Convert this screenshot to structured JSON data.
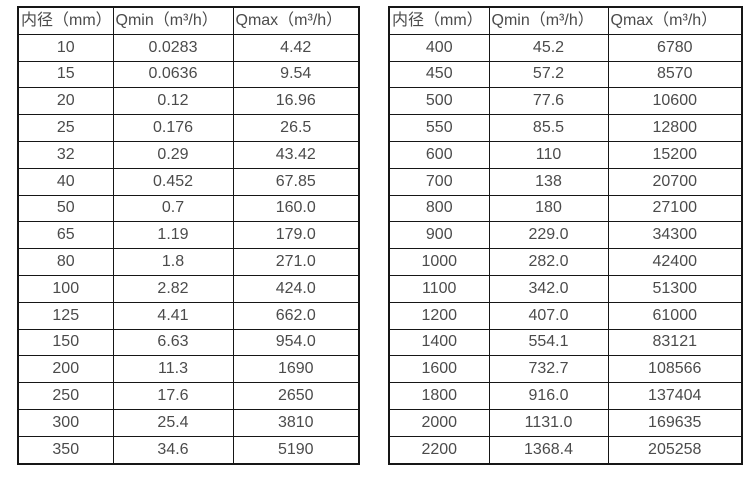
{
  "page": {
    "background_color": "#ffffff",
    "border_color": "#161616",
    "text_color": "#4b4b4b"
  },
  "tables": [
    {
      "name": "flow-range-table-small-diameters",
      "headers": [
        "内径（mm）",
        "Qmin（m³/h）",
        "Qmax（m³/h）"
      ],
      "rows": [
        [
          "10",
          "0.0283",
          "4.42"
        ],
        [
          "15",
          "0.0636",
          "9.54"
        ],
        [
          "20",
          "0.12",
          "16.96"
        ],
        [
          "25",
          "0.176",
          "26.5"
        ],
        [
          "32",
          "0.29",
          "43.42"
        ],
        [
          "40",
          "0.452",
          "67.85"
        ],
        [
          "50",
          "0.7",
          "160.0"
        ],
        [
          "65",
          "1.19",
          "179.0"
        ],
        [
          "80",
          "1.8",
          "271.0"
        ],
        [
          "100",
          "2.82",
          "424.0"
        ],
        [
          "125",
          "4.41",
          "662.0"
        ],
        [
          "150",
          "6.63",
          "954.0"
        ],
        [
          "200",
          "11.3",
          "1690"
        ],
        [
          "250",
          "17.6",
          "2650"
        ],
        [
          "300",
          "25.4",
          "3810"
        ],
        [
          "350",
          "34.6",
          "5190"
        ]
      ]
    },
    {
      "name": "flow-range-table-large-diameters",
      "headers": [
        "内径（mm）",
        "Qmin（m³/h）",
        "Qmax（m³/h）"
      ],
      "rows": [
        [
          "400",
          "45.2",
          "6780"
        ],
        [
          "450",
          "57.2",
          "8570"
        ],
        [
          "500",
          "77.6",
          "10600"
        ],
        [
          "550",
          "85.5",
          "12800"
        ],
        [
          "600",
          "110",
          "15200"
        ],
        [
          "700",
          "138",
          "20700"
        ],
        [
          "800",
          "180",
          "27100"
        ],
        [
          "900",
          "229.0",
          "34300"
        ],
        [
          "1000",
          "282.0",
          "42400"
        ],
        [
          "1100",
          "342.0",
          "51300"
        ],
        [
          "1200",
          "407.0",
          "61000"
        ],
        [
          "1400",
          "554.1",
          "83121"
        ],
        [
          "1600",
          "732.7",
          "108566"
        ],
        [
          "1800",
          "916.0",
          "137404"
        ],
        [
          "2000",
          "1131.0",
          "169635"
        ],
        [
          "2200",
          "1368.4",
          "205258"
        ]
      ]
    }
  ]
}
